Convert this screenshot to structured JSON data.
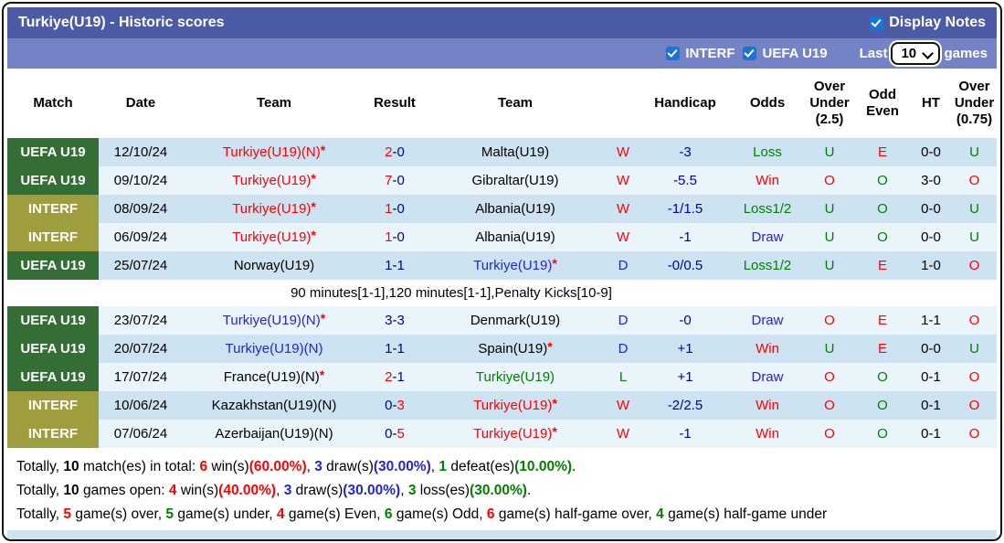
{
  "header": {
    "title": "Turkiye(U19) - Historic scores",
    "display_notes_label": "Display Notes",
    "display_notes_checked": true
  },
  "filter_bar": {
    "interf_label": "INTERF",
    "interf_checked": true,
    "uefa_label": "UEFA U19",
    "uefa_checked": true,
    "last_label": "Last",
    "games_count": "10",
    "games_label": "games"
  },
  "table": {
    "columns": [
      "Match",
      "Date",
      "Team",
      "Result",
      "Team",
      "",
      "Handicap",
      "Odds",
      "Over Under (2.5)",
      "Odd Even",
      "HT",
      "Over Under (0.75)"
    ],
    "rows": [
      {
        "league": "UEFA U19",
        "date": "12/10/24",
        "home": {
          "text": "Turkiye(U19)(N)",
          "color": "red",
          "star": true
        },
        "result": {
          "h": "2",
          "a": "0",
          "hc": "red",
          "ac": "navy"
        },
        "away": {
          "text": "Malta(U19)",
          "color": "black",
          "star": false
        },
        "wdl": {
          "text": "W",
          "color": "red"
        },
        "handicap": "-3",
        "odds": {
          "text": "Loss",
          "color": "green"
        },
        "ou25": {
          "text": "U",
          "color": "green"
        },
        "oddeven": {
          "text": "E",
          "color": "red"
        },
        "ht": "0-0",
        "ou075": {
          "text": "U",
          "color": "green"
        },
        "stripe": "dark"
      },
      {
        "league": "UEFA U19",
        "date": "09/10/24",
        "home": {
          "text": "Turkiye(U19)",
          "color": "red",
          "star": true
        },
        "result": {
          "h": "7",
          "a": "0",
          "hc": "red",
          "ac": "navy"
        },
        "away": {
          "text": "Gibraltar(U19)",
          "color": "black",
          "star": false
        },
        "wdl": {
          "text": "W",
          "color": "red"
        },
        "handicap": "-5.5",
        "odds": {
          "text": "Win",
          "color": "red"
        },
        "ou25": {
          "text": "O",
          "color": "red"
        },
        "oddeven": {
          "text": "O",
          "color": "green"
        },
        "ht": "3-0",
        "ou075": {
          "text": "O",
          "color": "red"
        },
        "stripe": "light"
      },
      {
        "league": "INTERF",
        "date": "08/09/24",
        "home": {
          "text": "Turkiye(U19)",
          "color": "red",
          "star": true
        },
        "result": {
          "h": "1",
          "a": "0",
          "hc": "red",
          "ac": "navy"
        },
        "away": {
          "text": "Albania(U19)",
          "color": "black",
          "star": false
        },
        "wdl": {
          "text": "W",
          "color": "red"
        },
        "handicap": "-1/1.5",
        "odds": {
          "text": "Loss1/2",
          "color": "green"
        },
        "ou25": {
          "text": "U",
          "color": "green"
        },
        "oddeven": {
          "text": "O",
          "color": "green"
        },
        "ht": "0-0",
        "ou075": {
          "text": "U",
          "color": "green"
        },
        "stripe": "dark"
      },
      {
        "league": "INTERF",
        "date": "06/09/24",
        "home": {
          "text": "Turkiye(U19)",
          "color": "red",
          "star": true
        },
        "result": {
          "h": "1",
          "a": "0",
          "hc": "red",
          "ac": "navy"
        },
        "away": {
          "text": "Albania(U19)",
          "color": "black",
          "star": false
        },
        "wdl": {
          "text": "W",
          "color": "red"
        },
        "handicap": "-1",
        "odds": {
          "text": "Draw",
          "color": "blue"
        },
        "ou25": {
          "text": "U",
          "color": "green"
        },
        "oddeven": {
          "text": "O",
          "color": "green"
        },
        "ht": "0-0",
        "ou075": {
          "text": "U",
          "color": "green"
        },
        "stripe": "light"
      },
      {
        "league": "UEFA U19",
        "date": "25/07/24",
        "home": {
          "text": "Norway(U19)",
          "color": "black",
          "star": false
        },
        "result": {
          "h": "1",
          "a": "1",
          "hc": "navy",
          "ac": "navy"
        },
        "away": {
          "text": "Turkiye(U19)",
          "color": "blue",
          "star": true
        },
        "wdl": {
          "text": "D",
          "color": "blue"
        },
        "handicap": "-0/0.5",
        "odds": {
          "text": "Loss1/2",
          "color": "green"
        },
        "ou25": {
          "text": "U",
          "color": "green"
        },
        "oddeven": {
          "text": "E",
          "color": "red"
        },
        "ht": "1-0",
        "ou075": {
          "text": "O",
          "color": "red"
        },
        "stripe": "dark"
      },
      {
        "type": "note",
        "text": "90 minutes[1-1],120 minutes[1-1],Penalty Kicks[10-9]",
        "stripe": "white"
      },
      {
        "league": "UEFA U19",
        "date": "23/07/24",
        "home": {
          "text": "Turkiye(U19)(N)",
          "color": "blue",
          "star": true
        },
        "result": {
          "h": "3",
          "a": "3",
          "hc": "navy",
          "ac": "navy"
        },
        "away": {
          "text": "Denmark(U19)",
          "color": "black",
          "star": false
        },
        "wdl": {
          "text": "D",
          "color": "blue"
        },
        "handicap": "-0",
        "odds": {
          "text": "Draw",
          "color": "blue"
        },
        "ou25": {
          "text": "O",
          "color": "red"
        },
        "oddeven": {
          "text": "E",
          "color": "red"
        },
        "ht": "1-1",
        "ou075": {
          "text": "O",
          "color": "red"
        },
        "stripe": "light"
      },
      {
        "league": "UEFA U19",
        "date": "20/07/24",
        "home": {
          "text": "Turkiye(U19)(N)",
          "color": "blue",
          "star": false
        },
        "result": {
          "h": "1",
          "a": "1",
          "hc": "navy",
          "ac": "navy"
        },
        "away": {
          "text": "Spain(U19)",
          "color": "black",
          "star": true
        },
        "wdl": {
          "text": "D",
          "color": "blue"
        },
        "handicap": "+1",
        "odds": {
          "text": "Win",
          "color": "red"
        },
        "ou25": {
          "text": "U",
          "color": "green"
        },
        "oddeven": {
          "text": "E",
          "color": "red"
        },
        "ht": "0-0",
        "ou075": {
          "text": "U",
          "color": "green"
        },
        "stripe": "dark"
      },
      {
        "league": "UEFA U19",
        "date": "17/07/24",
        "home": {
          "text": "France(U19)(N)",
          "color": "black",
          "star": true
        },
        "result": {
          "h": "2",
          "a": "1",
          "hc": "red",
          "ac": "navy"
        },
        "away": {
          "text": "Turkiye(U19)",
          "color": "green",
          "star": false
        },
        "wdl": {
          "text": "L",
          "color": "green"
        },
        "handicap": "+1",
        "odds": {
          "text": "Draw",
          "color": "blue"
        },
        "ou25": {
          "text": "O",
          "color": "red"
        },
        "oddeven": {
          "text": "O",
          "color": "green"
        },
        "ht": "0-1",
        "ou075": {
          "text": "O",
          "color": "red"
        },
        "stripe": "light"
      },
      {
        "league": "INTERF",
        "date": "10/06/24",
        "home": {
          "text": "Kazakhstan(U19)(N)",
          "color": "black",
          "star": false
        },
        "result": {
          "h": "0",
          "a": "3",
          "hc": "navy",
          "ac": "red"
        },
        "away": {
          "text": "Turkiye(U19)",
          "color": "red",
          "star": true
        },
        "wdl": {
          "text": "W",
          "color": "red"
        },
        "handicap": "-2/2.5",
        "odds": {
          "text": "Win",
          "color": "red"
        },
        "ou25": {
          "text": "O",
          "color": "red"
        },
        "oddeven": {
          "text": "O",
          "color": "green"
        },
        "ht": "0-1",
        "ou075": {
          "text": "O",
          "color": "red"
        },
        "stripe": "dark"
      },
      {
        "league": "INTERF",
        "date": "07/06/24",
        "home": {
          "text": "Azerbaijan(U19)(N)",
          "color": "black",
          "star": false
        },
        "result": {
          "h": "0",
          "a": "5",
          "hc": "navy",
          "ac": "red"
        },
        "away": {
          "text": "Turkiye(U19)",
          "color": "red",
          "star": true
        },
        "wdl": {
          "text": "W",
          "color": "red"
        },
        "handicap": "-1",
        "odds": {
          "text": "Win",
          "color": "red"
        },
        "ou25": {
          "text": "O",
          "color": "red"
        },
        "oddeven": {
          "text": "O",
          "color": "green"
        },
        "ht": "0-1",
        "ou075": {
          "text": "O",
          "color": "red"
        },
        "stripe": "light"
      }
    ]
  },
  "footer": {
    "lines": [
      [
        {
          "t": "Totally, "
        },
        {
          "t": "10",
          "b": 1
        },
        {
          "t": " match(es) in total: "
        },
        {
          "t": "6",
          "c": "red",
          "b": 1
        },
        {
          "t": " win(s)"
        },
        {
          "t": "(60.00%)",
          "c": "red",
          "b": 1
        },
        {
          "t": ", "
        },
        {
          "t": "3",
          "c": "blue",
          "b": 1
        },
        {
          "t": " draw(s)"
        },
        {
          "t": "(30.00%)",
          "c": "blue",
          "b": 1
        },
        {
          "t": ", "
        },
        {
          "t": "1",
          "c": "green",
          "b": 1
        },
        {
          "t": " defeat(es)"
        },
        {
          "t": "(10.00%)",
          "c": "green",
          "b": 1
        },
        {
          "t": "."
        }
      ],
      [
        {
          "t": "Totally, "
        },
        {
          "t": "10",
          "b": 1
        },
        {
          "t": " games open: "
        },
        {
          "t": "4",
          "c": "red",
          "b": 1
        },
        {
          "t": " win(s)"
        },
        {
          "t": "(40.00%)",
          "c": "red",
          "b": 1
        },
        {
          "t": ", "
        },
        {
          "t": "3",
          "c": "blue",
          "b": 1
        },
        {
          "t": " draw(s)"
        },
        {
          "t": "(30.00%)",
          "c": "blue",
          "b": 1
        },
        {
          "t": ", "
        },
        {
          "t": "3",
          "c": "green",
          "b": 1
        },
        {
          "t": " loss(es)"
        },
        {
          "t": "(30.00%)",
          "c": "green",
          "b": 1
        },
        {
          "t": "."
        }
      ],
      [
        {
          "t": "Totally, "
        },
        {
          "t": "5",
          "c": "red",
          "b": 1
        },
        {
          "t": " game(s) over, "
        },
        {
          "t": "5",
          "c": "green",
          "b": 1
        },
        {
          "t": " game(s) under, "
        },
        {
          "t": "4",
          "c": "red",
          "b": 1
        },
        {
          "t": " game(s) Even, "
        },
        {
          "t": "6",
          "c": "green",
          "b": 1
        },
        {
          "t": " game(s) Odd, "
        },
        {
          "t": "6",
          "c": "red",
          "b": 1
        },
        {
          "t": " game(s) half-game over, "
        },
        {
          "t": "4",
          "c": "green",
          "b": 1
        },
        {
          "t": " game(s) half-game under"
        }
      ]
    ]
  },
  "colors": {
    "win_red": "#ff0000",
    "draw_blue": "#2323dd",
    "score_navy": "#000099",
    "loss_green": "#008000",
    "uefa_badge_green": "#356e35",
    "interf_badge_olive": "#9e9e3e",
    "bar_dark_blue": "#4c5ba6",
    "bar_light_blue": "#7482c6",
    "stripe_dark": "#cde3f1",
    "stripe_light": "#e9f4fb",
    "checkbox_blue": "#1876d2"
  }
}
